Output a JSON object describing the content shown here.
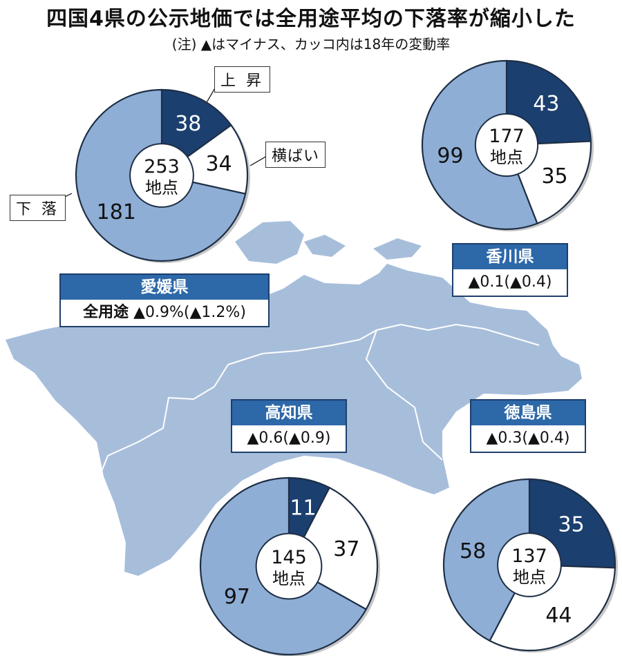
{
  "title": "四国4県の公示地価では全用途平均の下落率が縮小した",
  "note": "(注) ▲はマイナス、カッコ内は18年の変動率",
  "legend": {
    "rise": "上 昇",
    "flat": "横ばい",
    "fall": "下 落"
  },
  "colors": {
    "rise": "#1b3f6f",
    "flat": "#ffffff",
    "fall": "#8eaed5",
    "map": "#a7bedb",
    "ring": "#c7c7c7",
    "label": "#2d68a8"
  },
  "chart_data": [
    {
      "type": "pie",
      "prefecture": "愛媛県",
      "total": "253",
      "unit": "地点",
      "slices": [
        {
          "category": "rise",
          "value": 38
        },
        {
          "category": "flat",
          "value": 34
        },
        {
          "category": "fall",
          "value": 181
        }
      ],
      "label_prefix": "全用途",
      "change": "▲0.9%(▲1.2%)"
    },
    {
      "type": "pie",
      "prefecture": "香川県",
      "total": "177",
      "unit": "地点",
      "slices": [
        {
          "category": "rise",
          "value": 43
        },
        {
          "category": "flat",
          "value": 35
        },
        {
          "category": "fall",
          "value": 99
        }
      ],
      "change": "▲0.1(▲0.4)"
    },
    {
      "type": "pie",
      "prefecture": "高知県",
      "total": "145",
      "unit": "地点",
      "slices": [
        {
          "category": "rise",
          "value": 11
        },
        {
          "category": "flat",
          "value": 37
        },
        {
          "category": "fall",
          "value": 97
        }
      ],
      "change": "▲0.6(▲0.9)"
    },
    {
      "type": "pie",
      "prefecture": "徳島県",
      "total": "137",
      "unit": "地点",
      "slices": [
        {
          "category": "rise",
          "value": 35
        },
        {
          "category": "flat",
          "value": 44
        },
        {
          "category": "fall",
          "value": 58
        }
      ],
      "change": "▲0.3(▲0.4)"
    }
  ]
}
